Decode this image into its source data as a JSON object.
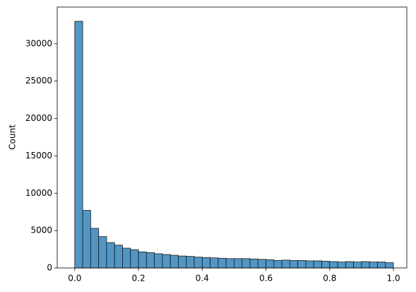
{
  "chart_data": {
    "type": "histogram",
    "y_label": "Count",
    "bins": [
      0,
      0.025,
      0.05,
      0.075,
      0.1,
      0.125,
      0.15,
      0.175,
      0.2,
      0.225,
      0.25,
      0.275,
      0.3,
      0.325,
      0.35,
      0.375,
      0.4,
      0.425,
      0.45,
      0.475,
      0.5,
      0.525,
      0.55,
      0.575,
      0.6,
      0.625,
      0.65,
      0.675,
      0.7,
      0.725,
      0.75,
      0.775,
      0.8,
      0.825,
      0.85,
      0.875,
      0.9,
      0.925,
      0.95,
      0.975,
      1
    ],
    "values": [
      33000,
      7700,
      5300,
      4200,
      3400,
      3050,
      2650,
      2450,
      2150,
      2050,
      1900,
      1800,
      1700,
      1600,
      1550,
      1450,
      1400,
      1350,
      1300,
      1250,
      1250,
      1250,
      1200,
      1150,
      1100,
      1000,
      1050,
      1000,
      1000,
      950,
      950,
      900,
      850,
      800,
      850,
      800,
      850,
      800,
      800,
      700
    ],
    "color": "#5196c4",
    "edge_color": "#1a1a1a",
    "xlim": [
      -0.055,
      1.042
    ],
    "ylim": [
      0,
      34900
    ],
    "xticks": [
      {
        "value": 0,
        "label": "0.0"
      },
      {
        "value": 0.2,
        "label": "0.2"
      },
      {
        "value": 0.4,
        "label": "0.4"
      },
      {
        "value": 0.6,
        "label": "0.6"
      },
      {
        "value": 0.8,
        "label": "0.8"
      },
      {
        "value": 1,
        "label": "1.0"
      }
    ],
    "yticks": [
      0,
      5000,
      10000,
      15000,
      20000,
      25000,
      30000
    ]
  }
}
